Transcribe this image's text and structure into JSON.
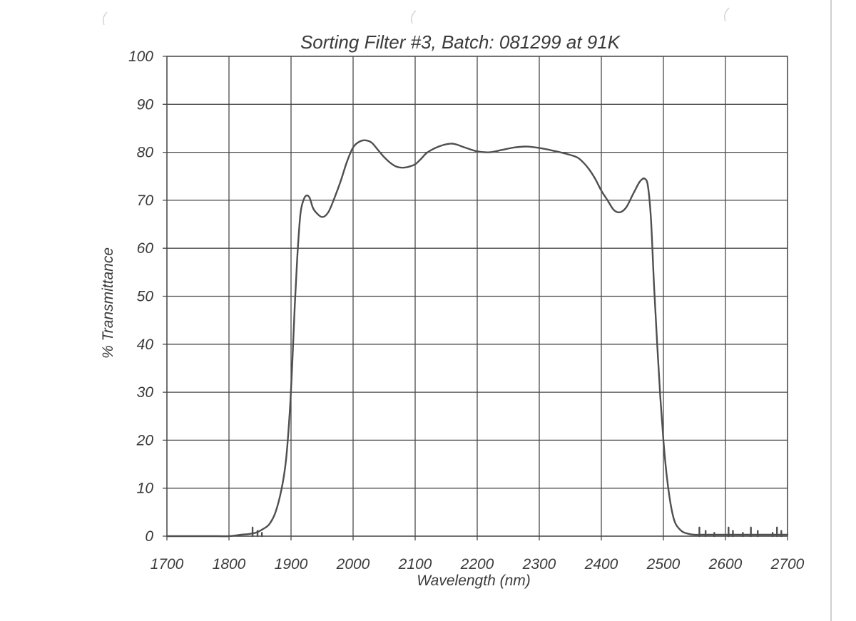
{
  "chart_data": {
    "type": "line",
    "title": "Sorting Filter #3, Batch: 081299  at 91K",
    "xlabel": "Wavelength (nm)",
    "ylabel": "% Transmittance",
    "xlim": [
      1700,
      2700
    ],
    "ylim": [
      0,
      100
    ],
    "x_ticks": [
      "1700",
      "1800",
      "1900",
      "2000",
      "2100",
      "2200",
      "2300",
      "2400",
      "2500",
      "2600",
      "2700"
    ],
    "y_ticks": [
      "0",
      "10",
      "20",
      "30",
      "40",
      "50",
      "60",
      "70",
      "80",
      "90",
      "100"
    ],
    "grid": true,
    "legend": "none",
    "colors": {
      "line": "#4f4f4f",
      "grid": "#4a4a4a",
      "text": "#3a3a3a"
    },
    "series": [
      {
        "x": [
          1700,
          1780,
          1800,
          1820,
          1835,
          1845,
          1855,
          1865,
          1875,
          1885,
          1892,
          1898,
          1902,
          1906,
          1910,
          1915,
          1920,
          1925,
          1930,
          1935,
          1940,
          1950,
          1960,
          1970,
          1980,
          1990,
          2000,
          2010,
          2020,
          2030,
          2040,
          2050,
          2060,
          2070,
          2080,
          2090,
          2100,
          2110,
          2120,
          2140,
          2160,
          2180,
          2200,
          2220,
          2240,
          2260,
          2280,
          2300,
          2320,
          2340,
          2360,
          2370,
          2380,
          2390,
          2400,
          2410,
          2420,
          2430,
          2440,
          2450,
          2460,
          2465,
          2470,
          2475,
          2480,
          2485,
          2490,
          2495,
          2500,
          2505,
          2510,
          2515,
          2520,
          2530,
          2540,
          2550,
          2560,
          2580,
          2600,
          2620,
          2640,
          2660,
          2680,
          2700
        ],
        "y": [
          0,
          0,
          0,
          0.3,
          0.5,
          0.8,
          1.5,
          2.5,
          5,
          10,
          16,
          26,
          36,
          48,
          58,
          67,
          70,
          71,
          70.5,
          68.5,
          67.5,
          66.5,
          67.5,
          70.5,
          74,
          78,
          81,
          82.2,
          82.5,
          82,
          80.5,
          79,
          77.8,
          77,
          76.8,
          77,
          77.5,
          78.7,
          80,
          81.3,
          81.8,
          81,
          80.2,
          80,
          80.5,
          81,
          81.2,
          80.9,
          80.4,
          79.8,
          79,
          78,
          76.5,
          74.5,
          72,
          70,
          68,
          67.5,
          68.5,
          71,
          73.5,
          74.3,
          74.5,
          73,
          66,
          52,
          40,
          29,
          20,
          13,
          8,
          4.5,
          2.5,
          1,
          0.5,
          0.3,
          0.3,
          0.3,
          0.3,
          0.3,
          0.3,
          0.3,
          0.3,
          0.3
        ]
      }
    ]
  }
}
